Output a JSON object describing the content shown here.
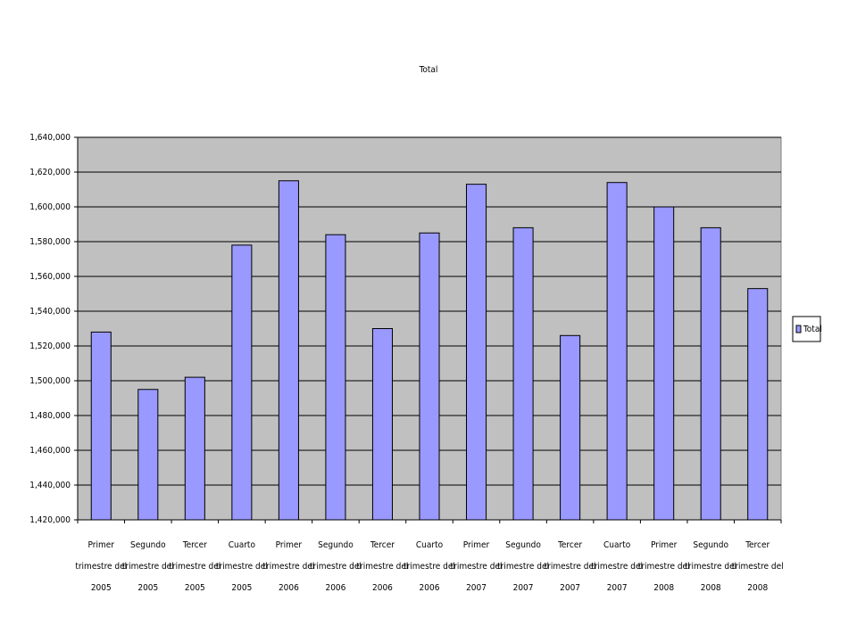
{
  "chart_data": {
    "type": "bar",
    "title": "Total",
    "categories": [
      "Primer trimestre del 2005",
      "Segundo trimestre del 2005",
      "Tercer trimestre del 2005",
      "Cuarto trimestre del 2005",
      "Primer trimestre del 2006",
      "Segundo trimestre del 2006",
      "Tercer trimestre del 2006",
      "Cuarto trimestre del 2006",
      "Primer trimestre del 2007",
      "Segundo trimestre del 2007",
      "Tercer trimestre del 2007",
      "Cuarto trimestre del 2007",
      "Primer trimestre del 2008",
      "Segundo trimestre del 2008",
      "Tercer trimestre del 2008"
    ],
    "series": [
      {
        "name": "Total",
        "color": "#9999ff",
        "values": [
          1528000,
          1495000,
          1502000,
          1578000,
          1615000,
          1584000,
          1530000,
          1585000,
          1613000,
          1588000,
          1526000,
          1614000,
          1600000,
          1588000,
          1553000
        ]
      }
    ],
    "ylim": [
      1420000,
      1640000
    ],
    "yticks": [
      {
        "value": 1420000,
        "label": "1,420,000"
      },
      {
        "value": 1440000,
        "label": "1,440,000"
      },
      {
        "value": 1460000,
        "label": "1,460,000"
      },
      {
        "value": 1480000,
        "label": "1,480,000"
      },
      {
        "value": 1500000,
        "label": "1,500,000"
      },
      {
        "value": 1520000,
        "label": "1,520,000"
      },
      {
        "value": 1540000,
        "label": "1,540,000"
      },
      {
        "value": 1560000,
        "label": "1,560,000"
      },
      {
        "value": 1580000,
        "label": "1,580,000"
      },
      {
        "value": 1600000,
        "label": "1,600,000"
      },
      {
        "value": 1620000,
        "label": "1,620,000"
      },
      {
        "value": 1640000,
        "label": "1,640,000"
      }
    ],
    "grid": true,
    "legend": "right"
  }
}
